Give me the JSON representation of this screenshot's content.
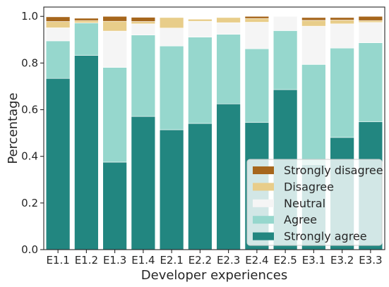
{
  "chart_data": {
    "type": "bar",
    "stacked": true,
    "categories": [
      "E1.1",
      "E1.2",
      "E1.3",
      "E1.4",
      "E2.1",
      "E2.2",
      "E2.3",
      "E2.4",
      "E2.5",
      "E3.1",
      "E3.2",
      "E3.3"
    ],
    "xlabel": "Developer experiences",
    "ylabel": "Percentage",
    "ylim": [
      0,
      1.04
    ],
    "yticks": [
      "0.0",
      "0.2",
      "0.4",
      "0.6",
      "0.8",
      "1.0"
    ],
    "grid": false,
    "legend_position": "bottom-right",
    "series": [
      {
        "name": "Strongly agree",
        "color": "#228680",
        "values": [
          0.734,
          0.833,
          0.375,
          0.571,
          0.514,
          0.541,
          0.625,
          0.545,
          0.686,
          0.365,
          0.481,
          0.548
        ]
      },
      {
        "name": "Agree",
        "color": "#96d7cd",
        "values": [
          0.161,
          0.139,
          0.406,
          0.349,
          0.359,
          0.37,
          0.298,
          0.316,
          0.253,
          0.429,
          0.383,
          0.339
        ]
      },
      {
        "name": "Neutral",
        "color": "#f5f5f5",
        "values": [
          0.056,
          0.0,
          0.156,
          0.048,
          0.077,
          0.068,
          0.05,
          0.114,
          0.061,
          0.164,
          0.104,
          0.087
        ]
      },
      {
        "name": "Disagree",
        "color": "#e8cd8a",
        "values": [
          0.027,
          0.01,
          0.042,
          0.01,
          0.045,
          0.009,
          0.022,
          0.016,
          0.0,
          0.025,
          0.016,
          0.008
        ]
      },
      {
        "name": "Strongly disagree",
        "color": "#a6661c",
        "values": [
          0.02,
          0.01,
          0.021,
          0.018,
          0.0,
          0.0,
          0.0,
          0.009,
          0.0,
          0.012,
          0.011,
          0.018
        ]
      }
    ],
    "legend_order": [
      "Strongly disagree",
      "Disagree",
      "Neutral",
      "Agree",
      "Strongly agree"
    ]
  }
}
